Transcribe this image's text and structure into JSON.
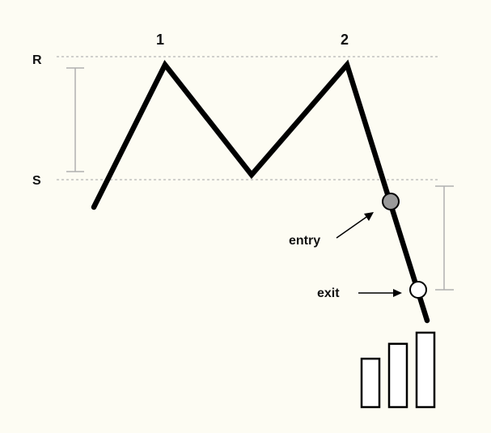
{
  "labels": {
    "resistance": "R",
    "support": "S",
    "peak_1": "1",
    "peak_2": "2",
    "entry": "entry",
    "exit": "exit"
  },
  "colors": {
    "background": "#fdfcf3",
    "price_line": "#000000",
    "level_line": "#b5b5b5",
    "measure_line": "#b0b0b0",
    "entry_marker": "#9a9a9a",
    "exit_marker": "#ffffff"
  },
  "volume_bars": {
    "count": 3,
    "relative_heights": [
      0.65,
      0.85,
      1.0
    ]
  }
}
